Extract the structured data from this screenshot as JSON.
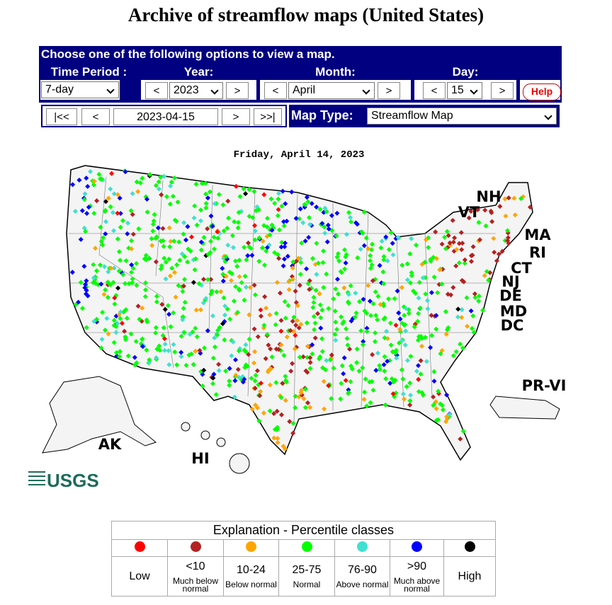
{
  "header": {
    "title": "Archive of streamflow maps (United States)"
  },
  "form": {
    "instruction": "Choose one of the following options to view a map.",
    "time_period": {
      "label": "Time Period :",
      "value": "7-day"
    },
    "year": {
      "label": "Year:",
      "prev": "<",
      "value": "2023",
      "next": ">"
    },
    "month": {
      "label": "Month:",
      "prev": "<",
      "value": "April",
      "next": ">"
    },
    "day": {
      "label": "Day:",
      "prev": "<",
      "value": "15",
      "next": ">"
    },
    "help": "Help",
    "nav": {
      "first": "|<<",
      "prev": "<",
      "date": "2023-04-15",
      "next": ">",
      "last": ">>|"
    },
    "map_type": {
      "label": "Map Type:",
      "value": "Streamflow Map"
    }
  },
  "map": {
    "date": "Friday, April 14, 2023",
    "labels": [
      "NH",
      "VT",
      "MA",
      "RI",
      "CT",
      "NJ",
      "DE",
      "MD",
      "DC",
      "PR-VI",
      "AK",
      "HI"
    ],
    "logo": "USGS"
  },
  "legend": {
    "title": "Explanation - Percentile classes",
    "classes": [
      {
        "color": "#ff0000",
        "label": "Low"
      },
      {
        "color": "#b22222",
        "label": "<10",
        "description": "Much below normal"
      },
      {
        "color": "#ffa500",
        "label": "10-24",
        "description": "Below normal"
      },
      {
        "color": "#00ff00",
        "label": "25-75",
        "description": "Normal"
      },
      {
        "color": "#40e0d0",
        "label": "76-90",
        "description": "Above normal"
      },
      {
        "color": "#0000ff",
        "label": ">90",
        "description": "Much above normal"
      },
      {
        "color": "#000000",
        "label": "High"
      }
    ]
  }
}
